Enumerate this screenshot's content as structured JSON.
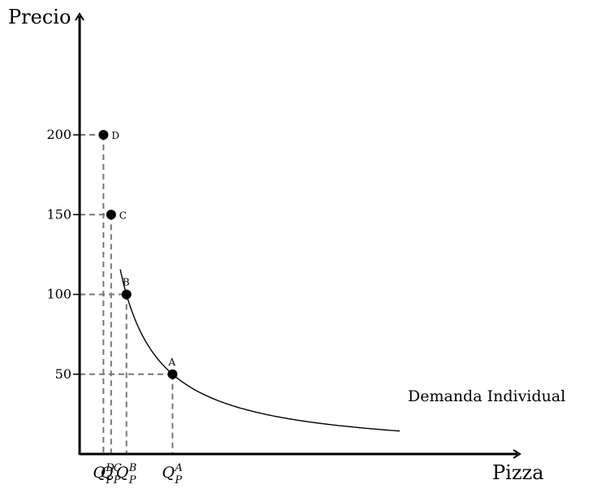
{
  "chart_data": {
    "type": "line",
    "xlabel": "Pizza",
    "ylabel": "Precio",
    "ylim": [
      0,
      200
    ],
    "yticks": [
      {
        "value": 50,
        "label": "50"
      },
      {
        "value": 100,
        "label": "100"
      },
      {
        "value": 150,
        "label": "150"
      },
      {
        "value": 200,
        "label": "200"
      }
    ],
    "series": [
      {
        "name": "Demanda Individual",
        "color": "#000000"
      }
    ],
    "points": [
      {
        "label": "D",
        "price": 200,
        "q_main": "Q",
        "q_sub": "P",
        "q_sup": "D"
      },
      {
        "label": "C",
        "price": 150,
        "q_main": "Q",
        "q_sub": "P",
        "q_sup": "C"
      },
      {
        "label": "B",
        "price": 100,
        "q_main": "Q",
        "q_sub": "P",
        "q_sup": "B"
      },
      {
        "label": "A",
        "price": 50,
        "q_main": "Q",
        "q_sub": "P",
        "q_sup": "A"
      }
    ],
    "guide_style": "dashed",
    "guide_color": "#777777",
    "grid": false,
    "legend": "none"
  }
}
